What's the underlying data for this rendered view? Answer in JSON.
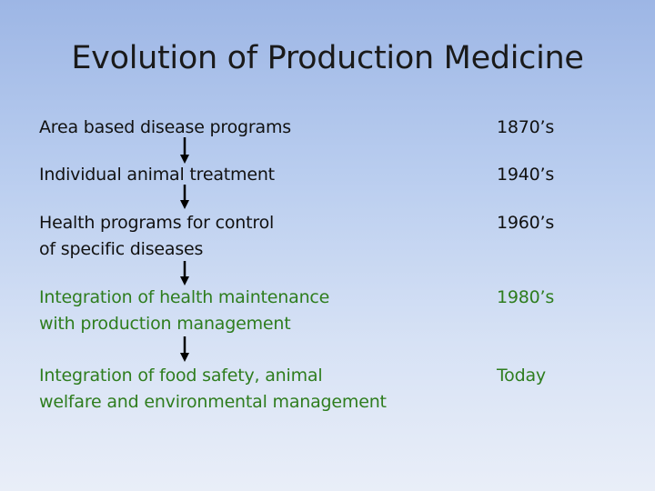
{
  "slide": {
    "title": "Evolution of Production Medicine",
    "items": [
      {
        "line1": "Area based disease programs",
        "line2": "",
        "year": "1870’s"
      },
      {
        "line1": "Individual animal treatment",
        "line2": "",
        "year": "1940’s"
      },
      {
        "line1": "Health programs for control",
        "line2": "of specific diseases",
        "year": "1960’s"
      },
      {
        "line1": "Integration of health maintenance",
        "line2": "with production management",
        "year": "1980’s"
      },
      {
        "line1": "Integration of food safety, animal",
        "line2": "welfare and environmental management",
        "year": "Today"
      }
    ]
  },
  "colors": {
    "established_text": "#111111",
    "modern_text": "#2e7d1e",
    "arrow": "#000000"
  }
}
